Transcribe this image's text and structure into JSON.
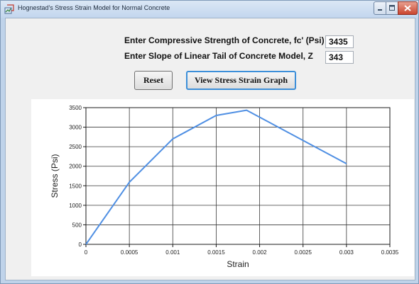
{
  "window": {
    "title": "Hognestad's Stress Strain Model for Normal Concrete"
  },
  "inputs": {
    "fc_label": "Enter Compressive Strength of Concrete, fc' (Psi)",
    "fc_value": "3435",
    "z_label": "Enter Slope of Linear Tail of Concrete Model, Z",
    "z_value": "343"
  },
  "buttons": {
    "reset": "Reset",
    "view_graph": "View Stress Strain Graph"
  },
  "chart_data": {
    "type": "line",
    "title": "",
    "xlabel": "Strain",
    "ylabel": "Stress (Psi)",
    "xlim": [
      0,
      0.0035
    ],
    "ylim": [
      0,
      3500
    ],
    "x_ticks": [
      "0",
      "0.0005",
      "0.001",
      "0.0015",
      "0.002",
      "0.0025",
      "0.003",
      "0.0035"
    ],
    "y_ticks": [
      "0",
      "500",
      "1000",
      "1500",
      "2000",
      "2500",
      "3000",
      "3500"
    ],
    "grid": true,
    "series": [
      {
        "color": "#4f8fe3",
        "x": [
          0,
          0.0005,
          0.001,
          0.0015,
          0.00185,
          0.003
        ],
        "y": [
          0,
          1590,
          2700,
          3300,
          3435,
          2065
        ]
      }
    ]
  }
}
